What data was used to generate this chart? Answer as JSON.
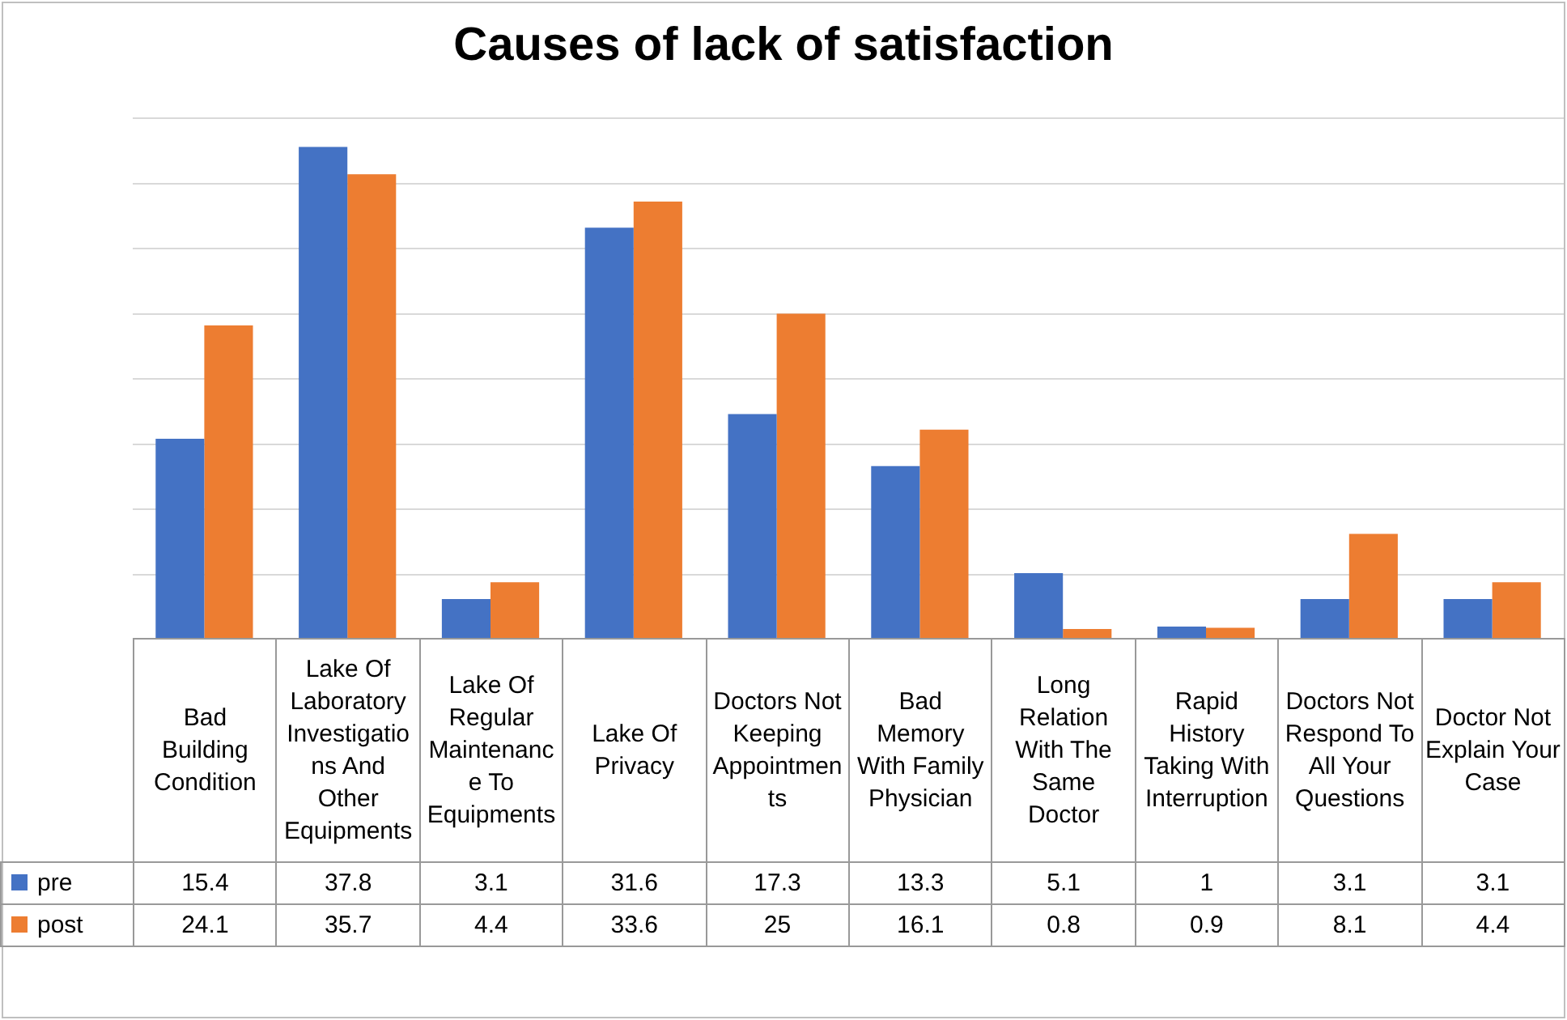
{
  "chart_data": {
    "type": "bar",
    "title": "Causes of lack of satisfaction",
    "categories": [
      "Bad Building Condition",
      "Lake Of Laboratory Investigations And Other Equipments",
      "Lake Of Regular Maintenance To Equipments",
      "Lake Of Privacy",
      "Doctors Not Keeping Appointments",
      "Bad Memory With Family Physician",
      "Long Relation With The Same Doctor",
      "Rapid History Taking With Interruption",
      "Doctors Not Respond To All Your Questions",
      "Doctor Not Explain Your Case"
    ],
    "series": [
      {
        "name": "pre",
        "color": "#4472c4",
        "values": [
          15.4,
          37.8,
          3.1,
          31.6,
          17.3,
          13.3,
          5.1,
          1,
          3.1,
          3.1
        ]
      },
      {
        "name": "post",
        "color": "#ed7d31",
        "values": [
          24.1,
          35.7,
          4.4,
          33.6,
          25,
          16.1,
          0.8,
          0.9,
          8.1,
          4.4
        ]
      }
    ],
    "ylim": [
      0,
      40
    ],
    "yticks": [
      {
        "value": 5,
        "label": null
      },
      {
        "value": 10,
        "label": null
      },
      {
        "value": 15,
        "label": null
      },
      {
        "value": 20,
        "label": null
      },
      {
        "value": 25,
        "label": null
      },
      {
        "value": 30,
        "label": null
      },
      {
        "value": 35,
        "label": null
      },
      {
        "value": 40,
        "label": null
      }
    ],
    "grid": "y",
    "legend": "bottom left",
    "tick_labels": "x",
    "data_labels": true
  }
}
